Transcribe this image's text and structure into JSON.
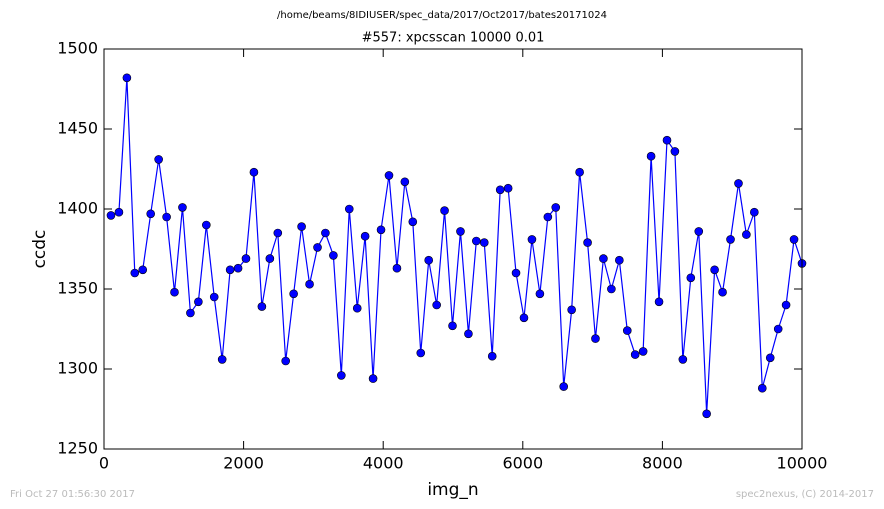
{
  "chart_data": {
    "type": "line",
    "suptitle": "/home/beams/8IDIUSER/spec_data/2017/Oct2017/bates20171024",
    "title": "#557: xpcsscan 10000 0.01",
    "x_label": "img_n",
    "y_label": "ccdc",
    "footer_left": "Fri Oct 27 01:56:30 2017",
    "footer_right": "spec2nexus, (C) 2014-2017",
    "xlim": [
      0,
      10000
    ],
    "xticks": [
      0,
      2000,
      4000,
      6000,
      8000,
      10000
    ],
    "ylim": [
      1250,
      1500
    ],
    "yticks": [
      1250,
      1300,
      1350,
      1400,
      1450,
      1500
    ],
    "grid": false,
    "markers": true,
    "x": [
      100,
      214,
      328,
      441,
      555,
      669,
      783,
      897,
      1010,
      1124,
      1238,
      1352,
      1466,
      1579,
      1693,
      1807,
      1921,
      2034,
      2148,
      2262,
      2376,
      2490,
      2603,
      2717,
      2831,
      2945,
      3059,
      3172,
      3286,
      3400,
      3514,
      3628,
      3741,
      3855,
      3969,
      4083,
      4197,
      4310,
      4424,
      4538,
      4652,
      4766,
      4879,
      4993,
      5107,
      5221,
      5334,
      5448,
      5562,
      5676,
      5790,
      5903,
      6017,
      6131,
      6245,
      6359,
      6472,
      6586,
      6700,
      6814,
      6928,
      7041,
      7155,
      7269,
      7383,
      7497,
      7610,
      7724,
      7838,
      7952,
      8066,
      8179,
      8293,
      8407,
      8521,
      8634,
      8748,
      8862,
      8976,
      9090,
      9203,
      9317,
      9431,
      9545,
      9659,
      9772,
      9886,
      10000
    ],
    "series": [
      {
        "color": "#0000ff",
        "values": [
          1396,
          1398,
          1482,
          1360,
          1362,
          1397,
          1431,
          1395,
          1348,
          1401,
          1335,
          1342,
          1390,
          1345,
          1306,
          1362,
          1363,
          1369,
          1423,
          1339,
          1369,
          1385,
          1305,
          1347,
          1389,
          1353,
          1376,
          1385,
          1371,
          1296,
          1400,
          1338,
          1383,
          1294,
          1387,
          1421,
          1363,
          1417,
          1392,
          1310,
          1368,
          1340,
          1399,
          1327,
          1386,
          1322,
          1380,
          1379,
          1308,
          1412,
          1413,
          1360,
          1332,
          1381,
          1347,
          1395,
          1401,
          1289,
          1337,
          1423,
          1379,
          1319,
          1369,
          1350,
          1368,
          1324,
          1309,
          1311,
          1433,
          1342,
          1443,
          1436,
          1306,
          1357,
          1386,
          1272,
          1362,
          1348,
          1381,
          1416,
          1384,
          1398,
          1288,
          1307,
          1325,
          1340,
          1381,
          1366
        ]
      }
    ]
  }
}
